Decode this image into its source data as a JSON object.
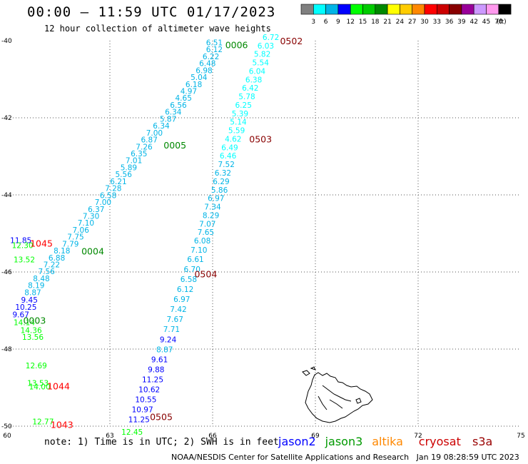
{
  "header": {
    "title": "00:00 – 11:59 UTC 01/17/2023",
    "subtitle": "12 hour collection of altimeter wave heights"
  },
  "legend": {
    "unit": "(ft)",
    "bins": [
      {
        "label": "3",
        "color": "#808080"
      },
      {
        "label": "6",
        "color": "#00ffff"
      },
      {
        "label": "9",
        "color": "#00b4e6"
      },
      {
        "label": "12",
        "color": "#0000ff"
      },
      {
        "label": "15",
        "color": "#00ff00"
      },
      {
        "label": "18",
        "color": "#00cc00"
      },
      {
        "label": "21",
        "color": "#008800"
      },
      {
        "label": "24",
        "color": "#ffff00"
      },
      {
        "label": "27",
        "color": "#ffcc00"
      },
      {
        "label": "30",
        "color": "#ff8800"
      },
      {
        "label": "33",
        "color": "#ff0000"
      },
      {
        "label": "36",
        "color": "#cc0000"
      },
      {
        "label": "39",
        "color": "#880000"
      },
      {
        "label": "42",
        "color": "#990099"
      },
      {
        "label": "45",
        "color": "#cc99ff"
      },
      {
        "label": "70",
        "color": "#ff99ee"
      },
      {
        "label": "",
        "color": "#000000"
      }
    ]
  },
  "map": {
    "lon_range": [
      60,
      75
    ],
    "lat_range": [
      -50,
      -40
    ],
    "lon_ticks": [
      "60",
      "63",
      "66",
      "69",
      "72",
      "75"
    ],
    "lat_ticks": [
      "-40",
      "-42",
      "-44",
      "-46",
      "-48",
      "-50"
    ],
    "gridlines": true
  },
  "chart_data": {
    "type": "scatter",
    "units": "ft",
    "track_labels": [
      {
        "text": "0502",
        "lon": 68.3,
        "lat": -40.0,
        "color": "#880000"
      },
      {
        "text": "0006",
        "lon": 66.7,
        "lat": -40.1,
        "color": "#008800"
      },
      {
        "text": "0005",
        "lon": 64.9,
        "lat": -42.7,
        "color": "#008800"
      },
      {
        "text": "0503",
        "lon": 67.4,
        "lat": -42.55,
        "color": "#880000"
      },
      {
        "text": "1045",
        "lon": 61.0,
        "lat": -45.25,
        "color": "#ff0000"
      },
      {
        "text": "0004",
        "lon": 62.5,
        "lat": -45.45,
        "color": "#008800"
      },
      {
        "text": "0504",
        "lon": 65.8,
        "lat": -46.05,
        "color": "#880000"
      },
      {
        "text": "0003",
        "lon": 60.8,
        "lat": -47.25,
        "color": "#008800"
      },
      {
        "text": "1044",
        "lon": 61.5,
        "lat": -48.95,
        "color": "#ff0000"
      },
      {
        "text": "0505",
        "lon": 64.5,
        "lat": -49.75,
        "color": "#880000"
      },
      {
        "text": "1043",
        "lon": 61.6,
        "lat": -49.95,
        "color": "#ff0000"
      }
    ],
    "observations": [
      {
        "v": "6.51",
        "lon": 66.05,
        "lat": -40.12,
        "color": "#00b4e6"
      },
      {
        "v": "6.12",
        "lon": 66.05,
        "lat": -40.3,
        "color": "#00b4e6"
      },
      {
        "v": "6.22",
        "lon": 65.95,
        "lat": -40.48,
        "color": "#00b4e6"
      },
      {
        "v": "6.48",
        "lon": 65.85,
        "lat": -40.66,
        "color": "#00b4e6"
      },
      {
        "v": "6.98",
        "lon": 65.75,
        "lat": -40.84,
        "color": "#00b4e6"
      },
      {
        "v": "5.04",
        "lon": 65.6,
        "lat": -41.02,
        "color": "#00b4e6"
      },
      {
        "v": "6.18",
        "lon": 65.45,
        "lat": -41.2,
        "color": "#00b4e6"
      },
      {
        "v": "4.97",
        "lon": 65.3,
        "lat": -41.38,
        "color": "#00b4e6"
      },
      {
        "v": "4.65",
        "lon": 65.15,
        "lat": -41.56,
        "color": "#00b4e6"
      },
      {
        "v": "6.56",
        "lon": 65.0,
        "lat": -41.74,
        "color": "#00b4e6"
      },
      {
        "v": "6.34",
        "lon": 64.85,
        "lat": -41.92,
        "color": "#00b4e6"
      },
      {
        "v": "5.87",
        "lon": 64.7,
        "lat": -42.1,
        "color": "#00b4e6"
      },
      {
        "v": "6.34",
        "lon": 64.5,
        "lat": -42.28,
        "color": "#00b4e6"
      },
      {
        "v": "7.00",
        "lon": 64.3,
        "lat": -42.46,
        "color": "#00b4e6"
      },
      {
        "v": "6.87",
        "lon": 64.15,
        "lat": -42.64,
        "color": "#00b4e6"
      },
      {
        "v": "7.26",
        "lon": 64.0,
        "lat": -42.82,
        "color": "#00b4e6"
      },
      {
        "v": "6.35",
        "lon": 63.85,
        "lat": -43.0,
        "color": "#00b4e6"
      },
      {
        "v": "7.01",
        "lon": 63.7,
        "lat": -43.18,
        "color": "#00b4e6"
      },
      {
        "v": "5.89",
        "lon": 63.55,
        "lat": -43.36,
        "color": "#00b4e6"
      },
      {
        "v": "5.56",
        "lon": 63.4,
        "lat": -43.54,
        "color": "#00b4e6"
      },
      {
        "v": "6.21",
        "lon": 63.25,
        "lat": -43.72,
        "color": "#00b4e6"
      },
      {
        "v": "7.28",
        "lon": 63.1,
        "lat": -43.9,
        "color": "#00b4e6"
      },
      {
        "v": "6.58",
        "lon": 62.95,
        "lat": -44.08,
        "color": "#00b4e6"
      },
      {
        "v": "7.00",
        "lon": 62.8,
        "lat": -44.26,
        "color": "#00b4e6"
      },
      {
        "v": "6.37",
        "lon": 62.6,
        "lat": -44.44,
        "color": "#00b4e6"
      },
      {
        "v": "7.30",
        "lon": 62.45,
        "lat": -44.62,
        "color": "#00b4e6"
      },
      {
        "v": "7.10",
        "lon": 62.3,
        "lat": -44.8,
        "color": "#00b4e6"
      },
      {
        "v": "7.06",
        "lon": 62.15,
        "lat": -44.98,
        "color": "#00b4e6"
      },
      {
        "v": "7.75",
        "lon": 62.0,
        "lat": -45.16,
        "color": "#00b4e6"
      },
      {
        "v": "7.79",
        "lon": 61.85,
        "lat": -45.34,
        "color": "#00b4e6"
      },
      {
        "v": "8.18",
        "lon": 61.6,
        "lat": -45.52,
        "color": "#00b4e6"
      },
      {
        "v": "6.88",
        "lon": 61.45,
        "lat": -45.7,
        "color": "#00b4e6"
      },
      {
        "v": "7.22",
        "lon": 61.3,
        "lat": -45.88,
        "color": "#00b4e6"
      },
      {
        "v": "7.56",
        "lon": 61.15,
        "lat": -46.06,
        "color": "#00b4e6"
      },
      {
        "v": "8.48",
        "lon": 61.0,
        "lat": -46.24,
        "color": "#00b4e6"
      },
      {
        "v": "8.19",
        "lon": 60.85,
        "lat": -46.42,
        "color": "#00b4e6"
      },
      {
        "v": "8.87",
        "lon": 60.75,
        "lat": -46.6,
        "color": "#00b4e6"
      },
      {
        "v": "9.45",
        "lon": 60.65,
        "lat": -46.8,
        "color": "#0000ff"
      },
      {
        "v": "10.25",
        "lon": 60.55,
        "lat": -46.98,
        "color": "#0000ff"
      },
      {
        "v": "9.67",
        "lon": 60.4,
        "lat": -47.18,
        "color": "#0000ff"
      },
      {
        "v": "14.14",
        "lon": 60.5,
        "lat": -47.38,
        "color": "#00ff00"
      },
      {
        "v": "14.36",
        "lon": 60.7,
        "lat": -47.58,
        "color": "#00ff00"
      },
      {
        "v": "13.56",
        "lon": 60.75,
        "lat": -47.76,
        "color": "#00ff00"
      },
      {
        "v": "11.85",
        "lon": 60.4,
        "lat": -45.25,
        "color": "#0000ff"
      },
      {
        "v": "12.30",
        "lon": 60.45,
        "lat": -45.38,
        "color": "#00ff00"
      },
      {
        "v": "13.52",
        "lon": 60.5,
        "lat": -45.75,
        "color": "#00ff00"
      },
      {
        "v": "12.69",
        "lon": 60.85,
        "lat": -48.5,
        "color": "#00ff00"
      },
      {
        "v": "13.53",
        "lon": 60.9,
        "lat": -48.95,
        "color": "#00ff00"
      },
      {
        "v": "14.00",
        "lon": 60.95,
        "lat": -49.05,
        "color": "#00ff00"
      },
      {
        "v": "12.77",
        "lon": 61.05,
        "lat": -49.95,
        "color": "#00ff00"
      },
      {
        "v": "12.45",
        "lon": 63.65,
        "lat": -50.22,
        "color": "#00ff00"
      },
      {
        "v": "6.72",
        "lon": 67.7,
        "lat": -39.98,
        "color": "#00ffff"
      },
      {
        "v": "6.03",
        "lon": 67.55,
        "lat": -40.2,
        "color": "#00ffff"
      },
      {
        "v": "5.82",
        "lon": 67.45,
        "lat": -40.42,
        "color": "#00ffff"
      },
      {
        "v": "5.54",
        "lon": 67.4,
        "lat": -40.64,
        "color": "#00ffff"
      },
      {
        "v": "6.04",
        "lon": 67.3,
        "lat": -40.86,
        "color": "#00ffff"
      },
      {
        "v": "6.38",
        "lon": 67.2,
        "lat": -41.08,
        "color": "#00ffff"
      },
      {
        "v": "6.42",
        "lon": 67.1,
        "lat": -41.3,
        "color": "#00ffff"
      },
      {
        "v": "5.78",
        "lon": 67.0,
        "lat": -41.52,
        "color": "#00ffff"
      },
      {
        "v": "6.25",
        "lon": 66.9,
        "lat": -41.74,
        "color": "#00ffff"
      },
      {
        "v": "5.39",
        "lon": 66.8,
        "lat": -41.96,
        "color": "#00ffff"
      },
      {
        "v": "5.14",
        "lon": 66.75,
        "lat": -42.18,
        "color": "#00ffff"
      },
      {
        "v": "5.59",
        "lon": 66.7,
        "lat": -42.4,
        "color": "#00ffff"
      },
      {
        "v": "4.62",
        "lon": 66.6,
        "lat": -42.62,
        "color": "#00ffff"
      },
      {
        "v": "6.49",
        "lon": 66.5,
        "lat": -42.84,
        "color": "#00ffff"
      },
      {
        "v": "6.46",
        "lon": 66.45,
        "lat": -43.06,
        "color": "#00ffff"
      },
      {
        "v": "7.52",
        "lon": 66.4,
        "lat": -43.28,
        "color": "#00b4e6"
      },
      {
        "v": "6.32",
        "lon": 66.3,
        "lat": -43.5,
        "color": "#00b4e6"
      },
      {
        "v": "6.29",
        "lon": 66.25,
        "lat": -43.72,
        "color": "#00b4e6"
      },
      {
        "v": "5.86",
        "lon": 66.2,
        "lat": -43.94,
        "color": "#00b4e6"
      },
      {
        "v": "6.97",
        "lon": 66.1,
        "lat": -44.16,
        "color": "#00b4e6"
      },
      {
        "v": "7.34",
        "lon": 66.0,
        "lat": -44.38,
        "color": "#00b4e6"
      },
      {
        "v": "8.29",
        "lon": 65.95,
        "lat": -44.6,
        "color": "#00b4e6"
      },
      {
        "v": "7.07",
        "lon": 65.85,
        "lat": -44.82,
        "color": "#00b4e6"
      },
      {
        "v": "7.65",
        "lon": 65.8,
        "lat": -45.04,
        "color": "#00b4e6"
      },
      {
        "v": "6.08",
        "lon": 65.7,
        "lat": -45.26,
        "color": "#00b4e6"
      },
      {
        "v": "7.10",
        "lon": 65.6,
        "lat": -45.5,
        "color": "#00b4e6"
      },
      {
        "v": "6.61",
        "lon": 65.5,
        "lat": -45.74,
        "color": "#00b4e6"
      },
      {
        "v": "6.70",
        "lon": 65.4,
        "lat": -46.0,
        "color": "#00b4e6"
      },
      {
        "v": "6.58",
        "lon": 65.3,
        "lat": -46.26,
        "color": "#00b4e6"
      },
      {
        "v": "6.12",
        "lon": 65.2,
        "lat": -46.52,
        "color": "#00b4e6"
      },
      {
        "v": "6.97",
        "lon": 65.1,
        "lat": -46.78,
        "color": "#00b4e6"
      },
      {
        "v": "7.42",
        "lon": 65.0,
        "lat": -47.04,
        "color": "#00b4e6"
      },
      {
        "v": "7.67",
        "lon": 64.9,
        "lat": -47.3,
        "color": "#00b4e6"
      },
      {
        "v": "7.71",
        "lon": 64.8,
        "lat": -47.56,
        "color": "#00b4e6"
      },
      {
        "v": "9.24",
        "lon": 64.7,
        "lat": -47.82,
        "color": "#0000ff"
      },
      {
        "v": "8.87",
        "lon": 64.6,
        "lat": -48.08,
        "color": "#00b4e6"
      },
      {
        "v": "9.61",
        "lon": 64.45,
        "lat": -48.34,
        "color": "#0000ff"
      },
      {
        "v": "9.88",
        "lon": 64.35,
        "lat": -48.6,
        "color": "#0000ff"
      },
      {
        "v": "11.25",
        "lon": 64.25,
        "lat": -48.86,
        "color": "#0000ff"
      },
      {
        "v": "10.62",
        "lon": 64.15,
        "lat": -49.12,
        "color": "#0000ff"
      },
      {
        "v": "10.55",
        "lon": 64.05,
        "lat": -49.38,
        "color": "#0000ff"
      },
      {
        "v": "10.97",
        "lon": 63.95,
        "lat": -49.64,
        "color": "#0000ff"
      },
      {
        "v": "11.25",
        "lon": 63.85,
        "lat": -49.9,
        "color": "#0000ff"
      }
    ]
  },
  "footer": {
    "note": "note: 1) Time is in UTC; 2) SWH is in feet",
    "credit": "NOAA/NESDIS Center for Satellite Applications and Research   Jan 19 08:28:59 UTC 2023",
    "satellites": [
      {
        "name": "jason2",
        "color": "#0000ff"
      },
      {
        "name": "jason3",
        "color": "#009900"
      },
      {
        "name": "altika",
        "color": "#ff8800"
      },
      {
        "name": "cryosat",
        "color": "#cc0000"
      },
      {
        "name": "s3a",
        "color": "#990000"
      }
    ]
  }
}
